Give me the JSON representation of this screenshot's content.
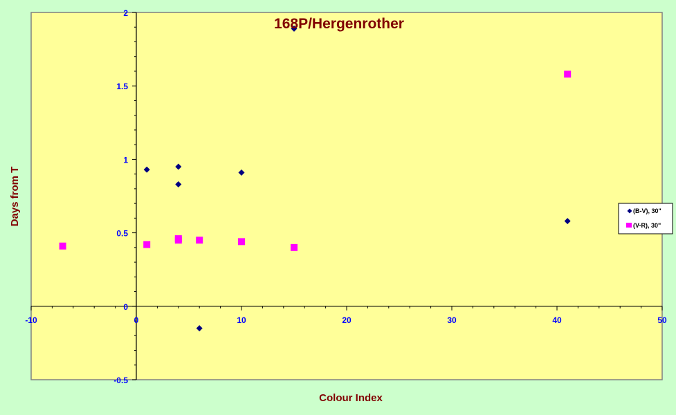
{
  "chart_data": {
    "type": "scatter",
    "title": "168P/Hergenrother",
    "xlabel": "Colour Index",
    "ylabel": "Days from T",
    "xlim": [
      -10,
      50
    ],
    "ylim": [
      -0.5,
      2
    ],
    "xticks": [
      "-10",
      "0",
      "10",
      "20",
      "30",
      "40",
      "50"
    ],
    "yticks": [
      "-0.5",
      "0",
      "0.5",
      "1",
      "1.5",
      "2"
    ],
    "grid": false,
    "legend_position": "right",
    "colors": {
      "plot_area": "#ffff99",
      "background": "#ccffcc",
      "tick_label": "#0000ff",
      "title": "#800000"
    },
    "series": [
      {
        "name": "(B-V), 30\"",
        "marker": "diamond",
        "color": "#000080",
        "points": [
          [
            1,
            0.93
          ],
          [
            4,
            0.95
          ],
          [
            4,
            0.83
          ],
          [
            10,
            0.91
          ],
          [
            15,
            1.89
          ],
          [
            6,
            -0.15
          ],
          [
            41,
            0.58
          ]
        ]
      },
      {
        "name": "(V-R), 30\"",
        "marker": "square",
        "color": "#ff00ff",
        "points": [
          [
            -7,
            0.41
          ],
          [
            1,
            0.42
          ],
          [
            4,
            0.46
          ],
          [
            4,
            0.45
          ],
          [
            6,
            0.45
          ],
          [
            10,
            0.44
          ],
          [
            15,
            0.4
          ],
          [
            41,
            1.58
          ]
        ]
      }
    ]
  }
}
